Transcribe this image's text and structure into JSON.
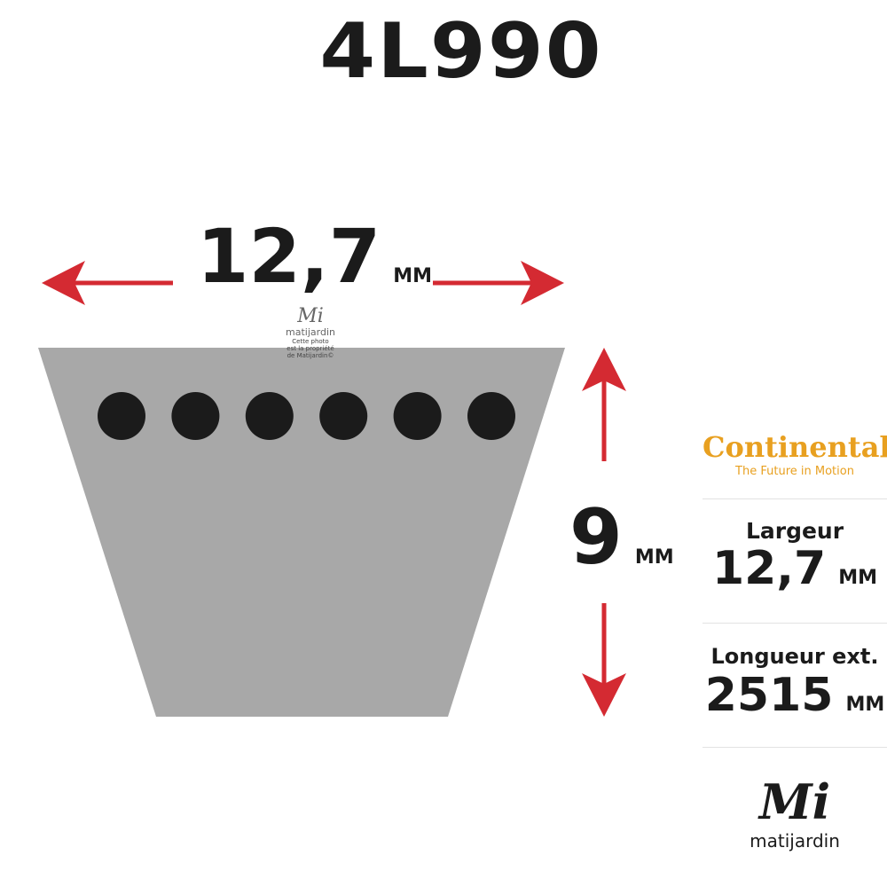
{
  "title": "4L990",
  "width": {
    "value": "12,7",
    "unit": "MM"
  },
  "height": {
    "value": "9",
    "unit": "MM"
  },
  "watermark": {
    "brand": "matijardin",
    "notice_lines": [
      "Cette photo",
      "est la propriété",
      "de Matijardin©"
    ]
  },
  "brand": {
    "name": "Continental",
    "tagline": "The Future in Motion",
    "color": "#e8a020"
  },
  "specs": [
    {
      "label": "Largeur",
      "value": "12,7",
      "unit": "MM"
    },
    {
      "label": "Longueur ext.",
      "value": "2515",
      "unit": "MM"
    }
  ],
  "footer_logo": {
    "name": "matijardin"
  },
  "colors": {
    "arrow": "#d42a32",
    "belt": "#a8a8a8",
    "dots": "#1b1b1b"
  },
  "holes": 6
}
